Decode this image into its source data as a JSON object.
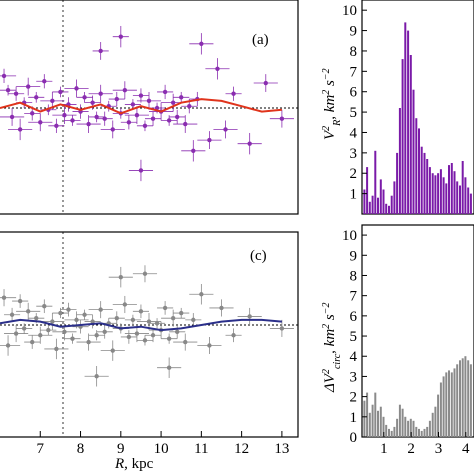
{
  "chart_data": [
    {
      "panel_label": "(a)",
      "type": "scatter",
      "xlim": [
        6.0,
        13.4
      ],
      "ylim": [
        -60,
        60
      ],
      "vline_x": 8.1,
      "hline_y": 0,
      "colors": {
        "points": "#8a2db0",
        "curve": "#e0341c",
        "guide": "#000000"
      },
      "points": [
        [
          6.1,
          18,
          4,
          0.3
        ],
        [
          6.2,
          10,
          3,
          0.2
        ],
        [
          6.3,
          -5,
          5,
          0.3
        ],
        [
          6.4,
          8,
          4,
          0.2
        ],
        [
          6.5,
          -12,
          6,
          0.3
        ],
        [
          6.6,
          3,
          3,
          0.2
        ],
        [
          6.7,
          12,
          5,
          0.3
        ],
        [
          6.8,
          -3,
          4,
          0.2
        ],
        [
          6.9,
          6,
          3,
          0.2
        ],
        [
          7.0,
          -8,
          5,
          0.3
        ],
        [
          7.1,
          15,
          4,
          0.2
        ],
        [
          7.2,
          -1,
          3,
          0.2
        ],
        [
          7.3,
          4,
          5,
          0.3
        ],
        [
          7.4,
          -10,
          4,
          0.2
        ],
        [
          7.5,
          9,
          3,
          0.2
        ],
        [
          7.6,
          -4,
          5,
          0.3
        ],
        [
          7.7,
          2,
          4,
          0.2
        ],
        [
          7.8,
          -7,
          3,
          0.2
        ],
        [
          7.9,
          11,
          5,
          0.3
        ],
        [
          8.0,
          -2,
          4,
          0.2
        ],
        [
          8.1,
          6,
          3,
          0.2
        ],
        [
          8.2,
          -9,
          5,
          0.3
        ],
        [
          8.3,
          3,
          4,
          0.2
        ],
        [
          8.4,
          -5,
          3,
          0.2
        ],
        [
          8.5,
          8,
          5,
          0.3
        ],
        [
          8.6,
          -6,
          4,
          0.2
        ],
        [
          8.7,
          1,
          3,
          0.2
        ],
        [
          8.8,
          -12,
          5,
          0.3
        ],
        [
          8.9,
          5,
          4,
          0.2
        ],
        [
          9.0,
          -3,
          3,
          0.2
        ],
        [
          9.1,
          10,
          5,
          0.3
        ],
        [
          9.2,
          -8,
          4,
          0.2
        ],
        [
          9.3,
          2,
          3,
          0.2
        ],
        [
          9.4,
          -4,
          5,
          0.3
        ],
        [
          9.5,
          7,
          4,
          0.2
        ],
        [
          9.6,
          -10,
          3,
          0.2
        ],
        [
          9.7,
          4,
          5,
          0.3
        ],
        [
          9.8,
          -6,
          4,
          0.2
        ],
        [
          9.9,
          0,
          3,
          0.2
        ],
        [
          10.0,
          -2,
          5,
          0.3
        ],
        [
          10.1,
          9,
          4,
          0.2
        ],
        [
          10.2,
          -7,
          3,
          0.2
        ],
        [
          10.3,
          3,
          5,
          0.3
        ],
        [
          10.4,
          -5,
          4,
          0.2
        ],
        [
          10.5,
          6,
          3,
          0.2
        ],
        [
          10.6,
          -9,
          5,
          0.3
        ],
        [
          10.7,
          1,
          4,
          0.2
        ],
        [
          10.8,
          -24,
          6,
          0.3
        ],
        [
          10.9,
          5,
          4,
          0.2
        ],
        [
          11.2,
          -18,
          5,
          0.3
        ],
        [
          11.4,
          22,
          6,
          0.3
        ],
        [
          11.6,
          -12,
          5,
          0.3
        ],
        [
          11.8,
          8,
          4,
          0.2
        ],
        [
          12.2,
          -20,
          6,
          0.3
        ],
        [
          12.6,
          14,
          5,
          0.3
        ],
        [
          13.0,
          -6,
          5,
          0.3
        ],
        [
          9.0,
          40,
          6,
          0.2
        ],
        [
          9.5,
          -35,
          6,
          0.3
        ],
        [
          8.5,
          32,
          5,
          0.2
        ],
        [
          11.0,
          36,
          6,
          0.3
        ]
      ],
      "curve": [
        [
          6.0,
          0
        ],
        [
          6.5,
          3
        ],
        [
          7.0,
          -2
        ],
        [
          7.5,
          2
        ],
        [
          8.0,
          -1
        ],
        [
          8.5,
          2
        ],
        [
          9.0,
          -3
        ],
        [
          9.5,
          1
        ],
        [
          10.0,
          -2
        ],
        [
          10.5,
          3
        ],
        [
          11.0,
          5
        ],
        [
          11.5,
          4
        ],
        [
          12.0,
          1
        ],
        [
          12.5,
          -2
        ],
        [
          13.0,
          -1
        ]
      ]
    },
    {
      "panel_label": "(c)",
      "type": "scatter",
      "xlabel": "R, kpc",
      "xlim": [
        6.0,
        13.4
      ],
      "ylim": [
        -60,
        60
      ],
      "xticks": [
        7,
        8,
        9,
        10,
        11,
        12,
        13
      ],
      "vline_x": 8.1,
      "hline_y": 0,
      "colors": {
        "points": "#888888",
        "curve": "#2b2f8a",
        "guide": "#000000"
      },
      "points": [
        [
          6.1,
          16,
          5,
          0.3
        ],
        [
          6.2,
          -12,
          6,
          0.3
        ],
        [
          6.3,
          6,
          4,
          0.2
        ],
        [
          6.4,
          -5,
          5,
          0.3
        ],
        [
          6.5,
          14,
          4,
          0.2
        ],
        [
          6.6,
          -2,
          3,
          0.2
        ],
        [
          6.7,
          8,
          5,
          0.3
        ],
        [
          6.8,
          -10,
          4,
          0.2
        ],
        [
          6.9,
          4,
          3,
          0.2
        ],
        [
          7.0,
          -6,
          5,
          0.3
        ],
        [
          7.1,
          11,
          4,
          0.2
        ],
        [
          7.2,
          -3,
          3,
          0.2
        ],
        [
          7.3,
          2,
          5,
          0.3
        ],
        [
          7.4,
          -14,
          6,
          0.3
        ],
        [
          7.5,
          7,
          3,
          0.2
        ],
        [
          7.6,
          -4,
          5,
          0.3
        ],
        [
          7.7,
          9,
          4,
          0.2
        ],
        [
          7.8,
          -8,
          3,
          0.2
        ],
        [
          7.9,
          3,
          5,
          0.3
        ],
        [
          8.0,
          -1,
          4,
          0.2
        ],
        [
          8.1,
          6,
          3,
          0.2
        ],
        [
          8.2,
          -10,
          5,
          0.3
        ],
        [
          8.3,
          2,
          4,
          0.2
        ],
        [
          8.4,
          -6,
          3,
          0.2
        ],
        [
          8.5,
          9,
          5,
          0.3
        ],
        [
          8.6,
          -4,
          4,
          0.2
        ],
        [
          8.7,
          1,
          3,
          0.2
        ],
        [
          8.8,
          -15,
          6,
          0.3
        ],
        [
          8.9,
          4,
          4,
          0.2
        ],
        [
          9.0,
          -2,
          3,
          0.2
        ],
        [
          9.1,
          12,
          5,
          0.3
        ],
        [
          9.2,
          -7,
          4,
          0.2
        ],
        [
          9.3,
          3,
          3,
          0.2
        ],
        [
          9.4,
          -5,
          5,
          0.3
        ],
        [
          9.5,
          8,
          4,
          0.2
        ],
        [
          9.6,
          -9,
          3,
          0.2
        ],
        [
          9.7,
          2,
          5,
          0.3
        ],
        [
          9.8,
          -6,
          4,
          0.2
        ],
        [
          9.9,
          1,
          3,
          0.2
        ],
        [
          10.0,
          -3,
          5,
          0.3
        ],
        [
          10.1,
          10,
          4,
          0.2
        ],
        [
          10.2,
          -8,
          3,
          0.2
        ],
        [
          10.3,
          4,
          5,
          0.3
        ],
        [
          10.4,
          -4,
          4,
          0.2
        ],
        [
          10.5,
          7,
          3,
          0.2
        ],
        [
          10.6,
          -10,
          5,
          0.3
        ],
        [
          10.8,
          3,
          4,
          0.2
        ],
        [
          11.0,
          18,
          6,
          0.3
        ],
        [
          11.2,
          -12,
          5,
          0.3
        ],
        [
          11.5,
          10,
          5,
          0.3
        ],
        [
          11.8,
          -6,
          4,
          0.2
        ],
        [
          12.2,
          5,
          5,
          0.3
        ],
        [
          13.0,
          -2,
          5,
          0.3
        ],
        [
          9.0,
          28,
          6,
          0.3
        ],
        [
          8.4,
          -30,
          6,
          0.3
        ],
        [
          10.2,
          -25,
          6,
          0.3
        ],
        [
          9.6,
          30,
          5,
          0.3
        ]
      ],
      "curve": [
        [
          6.0,
          1
        ],
        [
          6.5,
          3
        ],
        [
          7.0,
          2
        ],
        [
          7.5,
          -1
        ],
        [
          8.0,
          0
        ],
        [
          8.5,
          1
        ],
        [
          9.0,
          -2
        ],
        [
          9.5,
          -1
        ],
        [
          10.0,
          -3
        ],
        [
          10.5,
          -2
        ],
        [
          11.0,
          0
        ],
        [
          11.5,
          2
        ],
        [
          12.0,
          3
        ],
        [
          12.5,
          3
        ],
        [
          13.0,
          2
        ]
      ]
    },
    {
      "panel_label": "",
      "type": "bar",
      "ylabel": "V_R^2, km^2 s^-2",
      "xlim": [
        0.2,
        4.3
      ],
      "ylim": [
        0,
        10.5
      ],
      "xticks": [
        1,
        2,
        3,
        4
      ],
      "yticks": [
        1,
        2,
        3,
        4,
        5,
        6,
        7,
        8,
        9,
        10
      ],
      "colors": {
        "bars": "#7a1aa8"
      },
      "x": [
        0.3,
        0.4,
        0.5,
        0.6,
        0.7,
        0.8,
        0.9,
        1.0,
        1.1,
        1.2,
        1.3,
        1.4,
        1.5,
        1.6,
        1.7,
        1.8,
        1.9,
        2.0,
        2.1,
        2.2,
        2.3,
        2.4,
        2.5,
        2.6,
        2.7,
        2.8,
        2.9,
        3.0,
        3.1,
        3.2,
        3.3,
        3.4,
        3.5,
        3.6,
        3.7,
        3.8,
        3.9,
        4.0,
        4.1,
        4.2
      ],
      "values": [
        1.2,
        2.3,
        0.6,
        0.9,
        3.1,
        0.8,
        1.7,
        1.2,
        0.5,
        0.4,
        0.9,
        1.6,
        3.0,
        5.2,
        7.6,
        9.4,
        9.0,
        7.8,
        6.1,
        4.7,
        4.2,
        3.3,
        3.0,
        2.7,
        2.3,
        2.0,
        1.9,
        2.0,
        2.2,
        1.8,
        1.5,
        2.4,
        2.5,
        2.1,
        1.6,
        1.4,
        2.6,
        1.8,
        1.3,
        1.0
      ]
    },
    {
      "panel_label": "",
      "type": "bar",
      "ylabel": "ΔV_circ^2, km^2 s^-2",
      "xlim": [
        0.2,
        4.3
      ],
      "ylim": [
        0,
        10.5
      ],
      "xticks": [
        1,
        2,
        3,
        4
      ],
      "yticks": [
        0,
        1,
        2,
        3,
        4,
        5,
        6,
        7,
        8,
        9,
        10
      ],
      "colors": {
        "bars": "#8a8a8a"
      },
      "x": [
        0.3,
        0.4,
        0.5,
        0.6,
        0.7,
        0.8,
        0.9,
        1.0,
        1.1,
        1.2,
        1.3,
        1.4,
        1.5,
        1.6,
        1.7,
        1.8,
        1.9,
        2.0,
        2.1,
        2.2,
        2.3,
        2.4,
        2.5,
        2.6,
        2.7,
        2.8,
        2.9,
        3.0,
        3.1,
        3.2,
        3.3,
        3.4,
        3.5,
        3.6,
        3.7,
        3.8,
        3.9,
        4.0,
        4.1,
        4.2
      ],
      "values": [
        1.8,
        2.2,
        1.2,
        1.6,
        2.2,
        1.3,
        1.5,
        1.0,
        0.6,
        0.4,
        0.3,
        0.5,
        0.9,
        1.6,
        1.4,
        1.0,
        0.8,
        0.9,
        0.8,
        0.5,
        0.4,
        0.3,
        0.4,
        0.5,
        0.8,
        1.2,
        1.5,
        2.1,
        2.7,
        3.0,
        3.2,
        3.3,
        3.2,
        3.4,
        3.6,
        3.8,
        3.9,
        4.0,
        3.8,
        3.6
      ]
    }
  ]
}
